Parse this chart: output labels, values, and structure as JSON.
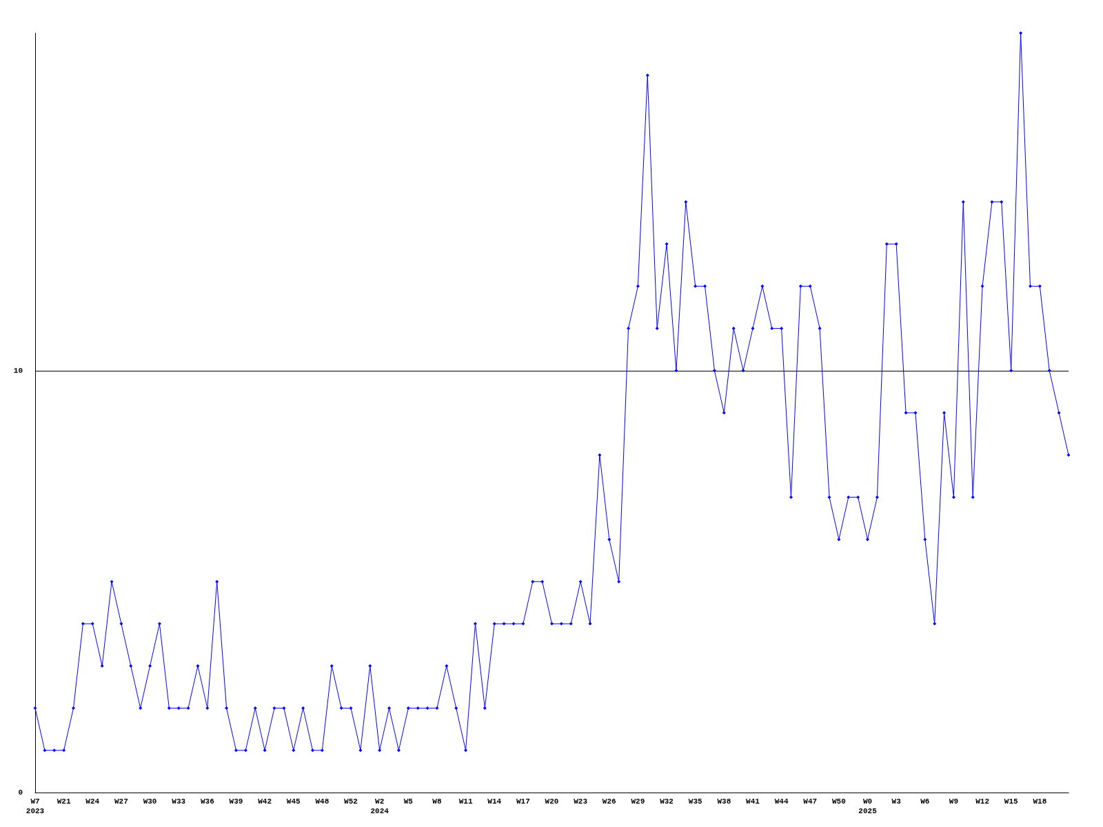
{
  "chart_data": {
    "type": "line",
    "categories": [
      "W7\n2023",
      null,
      null,
      "W21",
      null,
      null,
      "W24",
      null,
      null,
      "W27",
      null,
      null,
      "W30",
      null,
      null,
      "W33",
      null,
      null,
      "W36",
      null,
      null,
      "W39",
      null,
      null,
      "W42",
      null,
      null,
      "W45",
      null,
      null,
      "W48",
      null,
      null,
      "W52",
      null,
      null,
      "W2\n2024",
      null,
      null,
      "W5",
      null,
      null,
      "W8",
      null,
      null,
      "W11",
      null,
      null,
      "W14",
      null,
      null,
      "W17",
      null,
      null,
      "W20",
      null,
      null,
      "W23",
      null,
      null,
      "W26",
      null,
      null,
      "W29",
      null,
      null,
      "W32",
      null,
      null,
      "W35",
      null,
      null,
      "W38",
      null,
      null,
      "W41",
      null,
      null,
      "W44",
      null,
      null,
      "W47",
      null,
      null,
      "W50",
      null,
      null,
      "W0\n2025",
      null,
      null,
      "W3",
      null,
      null,
      "W6",
      null,
      null,
      "W9",
      null,
      null,
      "W12",
      null,
      null,
      "W15",
      null,
      null,
      "W18",
      null,
      null,
      null
    ],
    "series": [
      {
        "color": "#0000ff",
        "values": [
          2,
          1,
          1,
          1,
          2,
          4,
          4,
          3,
          5,
          4,
          3,
          2,
          3,
          4,
          2,
          2,
          2,
          3,
          2,
          5,
          2,
          1,
          1,
          2,
          1,
          2,
          2,
          1,
          2,
          1,
          1,
          3,
          2,
          2,
          1,
          3,
          1,
          2,
          1,
          2,
          2,
          2,
          2,
          3,
          2,
          1,
          4,
          2,
          4,
          4,
          4,
          4,
          5,
          5,
          4,
          4,
          4,
          5,
          4,
          8,
          6,
          5,
          11,
          12,
          17,
          11,
          13,
          10,
          14,
          12,
          12,
          10,
          9,
          11,
          10,
          11,
          12,
          11,
          11,
          7,
          12,
          12,
          11,
          7,
          6,
          7,
          7,
          6,
          7,
          13,
          13,
          9,
          9,
          6,
          4,
          9,
          7,
          14,
          7,
          12,
          14,
          14,
          10,
          18,
          12,
          12,
          10,
          9,
          8
        ]
      }
    ],
    "ylim": [
      0,
      18
    ],
    "yticks": [
      0,
      10
    ],
    "grid": "y",
    "marker": "diamond",
    "line_style": "solid"
  }
}
